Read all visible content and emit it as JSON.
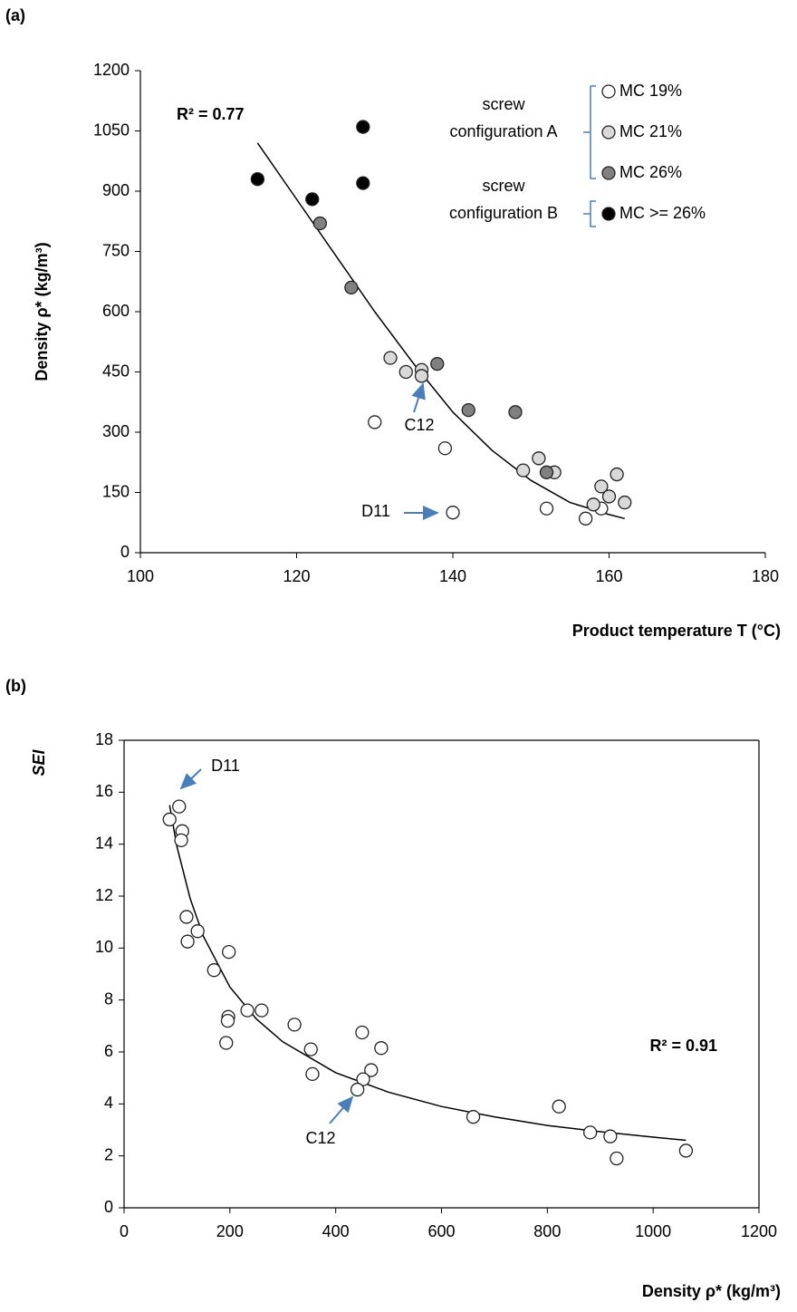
{
  "chart_data": [
    {
      "type": "scatter",
      "panel_label": "(a)",
      "x_label": "Product temperature T (°C)",
      "y_label": "Density ρ* (kg/m³)",
      "xlim": [
        100,
        180
      ],
      "xticks": [
        100,
        120,
        140,
        160,
        180
      ],
      "ylim": [
        0,
        1200
      ],
      "yticks": [
        0,
        150,
        300,
        450,
        600,
        750,
        900,
        1050,
        1200
      ],
      "r_squared": "R² = 0.77",
      "annotations": [
        "C12",
        "D11"
      ],
      "legend_groups": [
        [
          "screw",
          "configuration A"
        ],
        [
          "screw",
          "configuration B"
        ]
      ],
      "series": [
        {
          "name": "MC 19%",
          "color": "#ffffff",
          "x": [
            130,
            139,
            140,
            152,
            157,
            159
          ],
          "values": [
            325,
            260,
            100,
            110,
            85,
            110
          ]
        },
        {
          "name": "MC 21%",
          "color": "#d9d9d9",
          "x": [
            132,
            134,
            136,
            136,
            149,
            151,
            153,
            158,
            159,
            160,
            161,
            162
          ],
          "values": [
            485,
            450,
            455,
            440,
            205,
            235,
            200,
            120,
            165,
            140,
            195,
            125
          ]
        },
        {
          "name": "MC 26%",
          "color": "#808080",
          "x": [
            123,
            127,
            138,
            142,
            148,
            152
          ],
          "values": [
            820,
            660,
            470,
            355,
            350,
            200
          ]
        },
        {
          "name": "MC >= 26%",
          "color": "#000000",
          "x": [
            115,
            122,
            128.5,
            128.5
          ],
          "values": [
            930,
            880,
            1060,
            920
          ]
        }
      ],
      "trendline": {
        "x": [
          115,
          120,
          125,
          130,
          135,
          140,
          145,
          150,
          155,
          160,
          162
        ],
        "values": [
          1020,
          880,
          740,
          600,
          470,
          350,
          255,
          180,
          125,
          95,
          85
        ]
      }
    },
    {
      "type": "scatter",
      "panel_label": "(b)",
      "x_label": "Density ρ* (kg/m³)",
      "y_label": "SEI",
      "xlim": [
        0,
        1200
      ],
      "xticks": [
        0,
        200,
        400,
        600,
        800,
        1000,
        1200
      ],
      "ylim": [
        0,
        18
      ],
      "yticks": [
        0,
        2,
        4,
        6,
        8,
        10,
        12,
        14,
        16,
        18
      ],
      "r_squared": "R² = 0.91",
      "annotations": [
        "D11",
        "C12"
      ],
      "series": [
        {
          "color": "#ffffff",
          "x": [
            86,
            104,
            110,
            108,
            118,
            120,
            139,
            198,
            170,
            197,
            196,
            193,
            233,
            260,
            322,
            353,
            356,
            450,
            486,
            467,
            452,
            441,
            660,
            822,
            881,
            919,
            931,
            1062
          ],
          "values": [
            14.95,
            15.45,
            14.5,
            14.15,
            11.2,
            10.25,
            10.65,
            9.85,
            9.15,
            7.35,
            7.2,
            6.35,
            7.6,
            7.6,
            7.05,
            6.1,
            5.15,
            6.75,
            6.15,
            5.3,
            4.95,
            4.55,
            3.5,
            3.9,
            2.9,
            2.75,
            1.9,
            2.2
          ]
        }
      ],
      "trendline": {
        "x": [
          86,
          100,
          125,
          150,
          200,
          250,
          300,
          400,
          500,
          600,
          700,
          800,
          900,
          1000,
          1062
        ],
        "values": [
          15.5,
          13.9,
          11.9,
          10.45,
          8.5,
          7.27,
          6.39,
          5.2,
          4.45,
          3.9,
          3.5,
          3.17,
          2.93,
          2.72,
          2.6
        ]
      }
    }
  ]
}
